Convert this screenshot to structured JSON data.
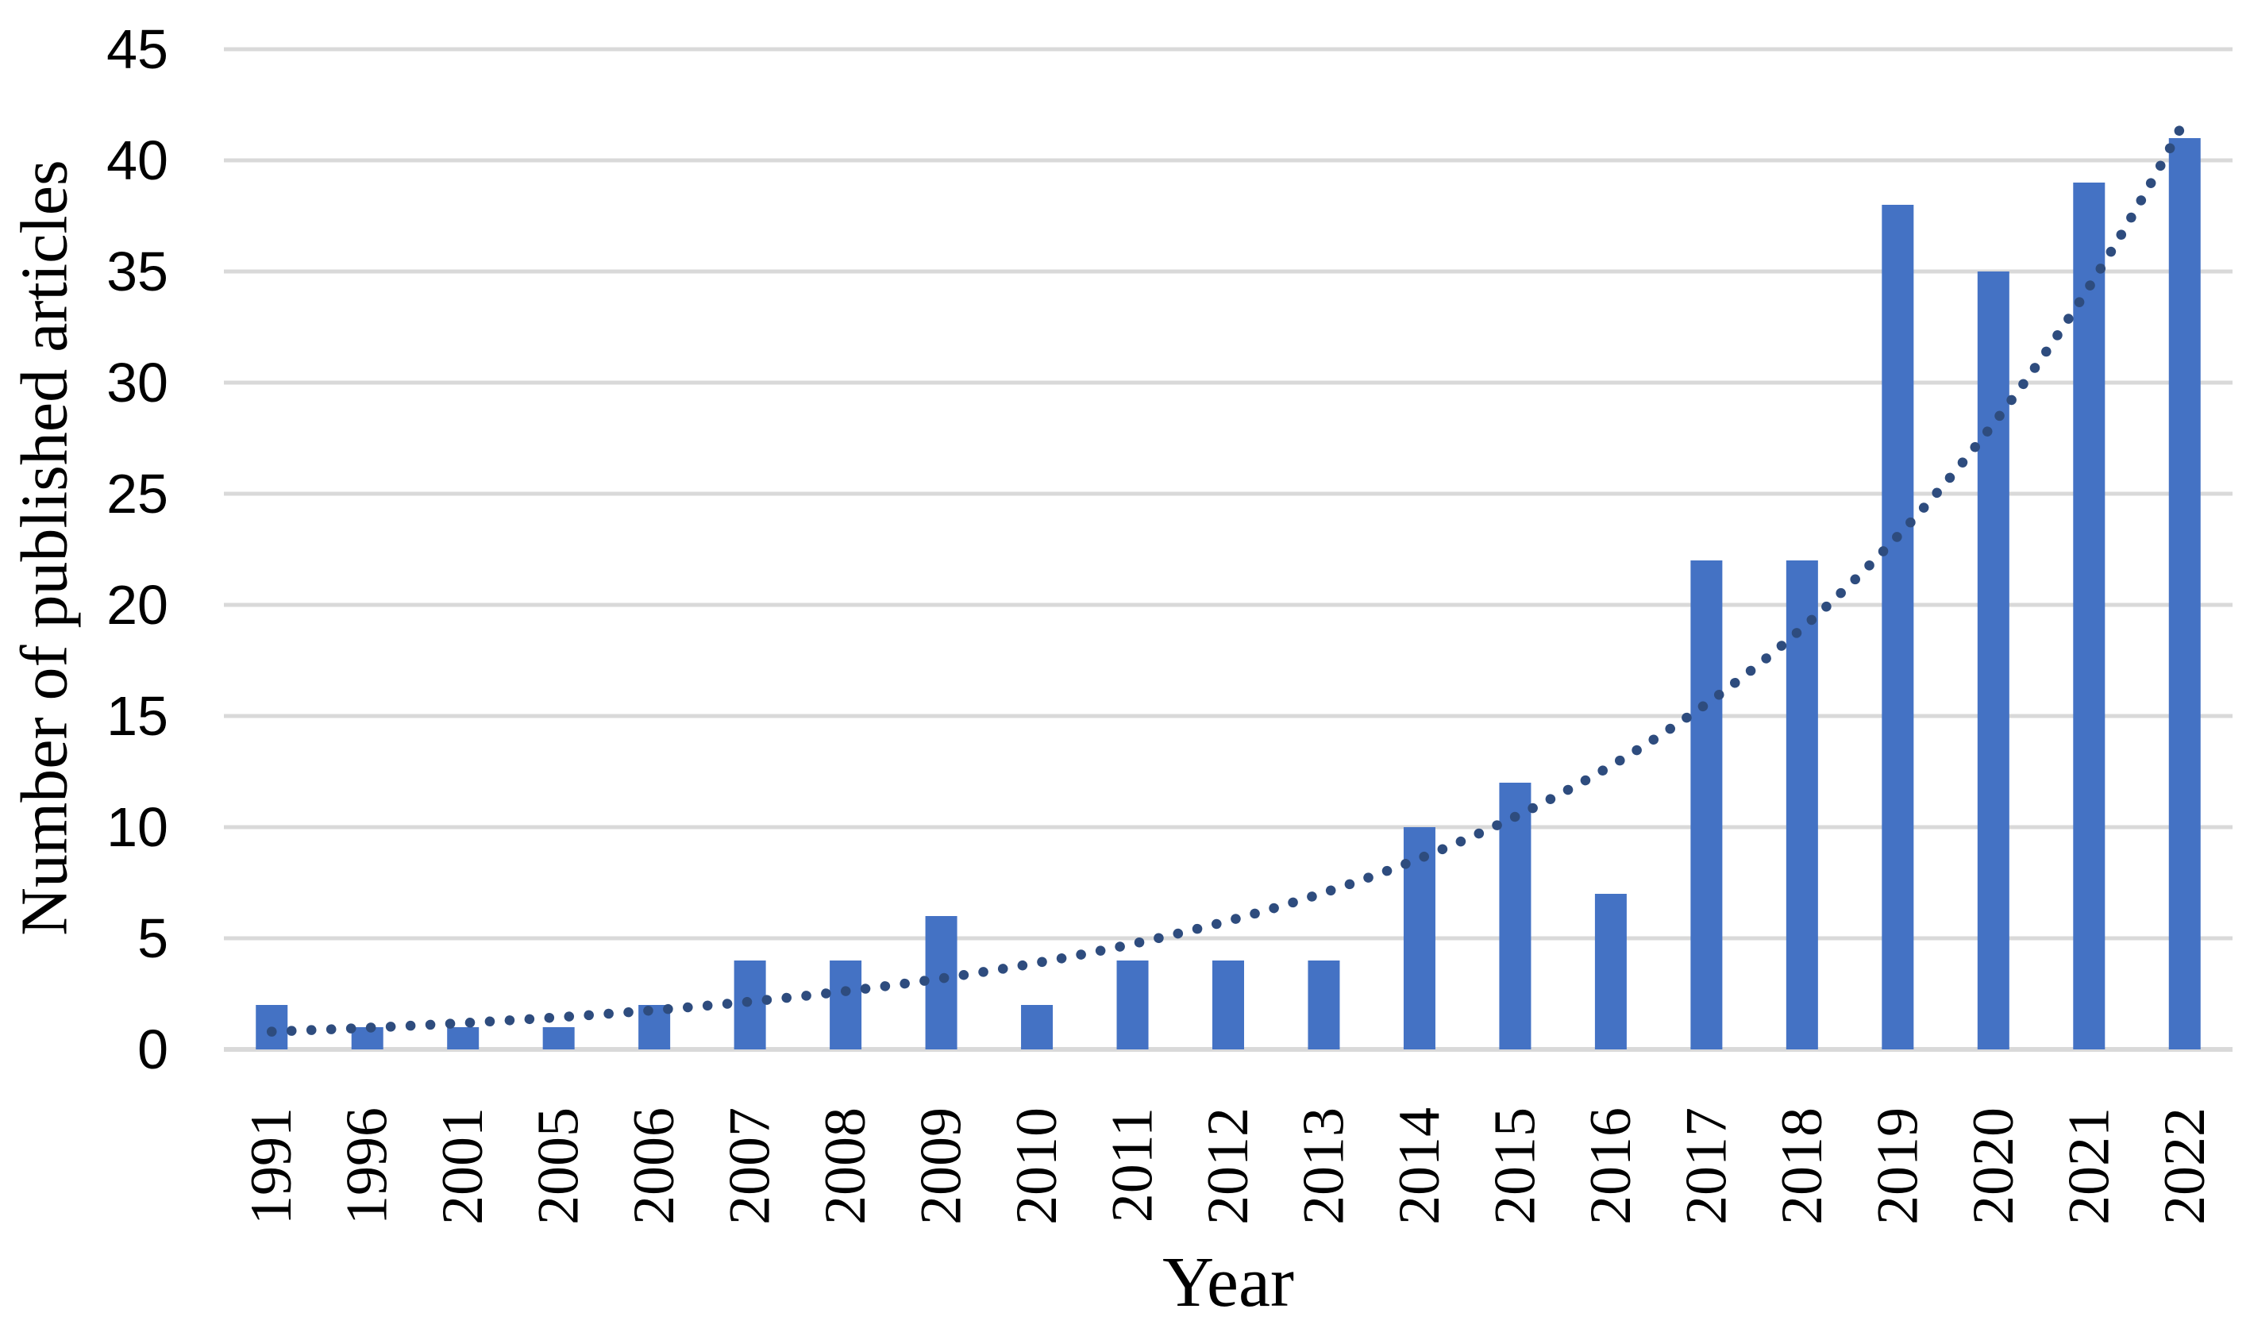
{
  "chart_data": {
    "type": "bar",
    "title": "",
    "xlabel": "Year",
    "ylabel": "Number of published articles",
    "categories": [
      "1991",
      "1996",
      "2001",
      "2005",
      "2006",
      "2007",
      "2008",
      "2009",
      "2010",
      "2011",
      "2012",
      "2013",
      "2014",
      "2015",
      "2016",
      "2017",
      "2018",
      "2019",
      "2020",
      "2021",
      "2022"
    ],
    "series": [
      {
        "name": "Number of published articles",
        "type": "bar",
        "color": "#4472C4",
        "values": [
          2,
          1,
          1,
          1,
          2,
          4,
          4,
          6,
          2,
          4,
          4,
          4,
          10,
          12,
          7,
          22,
          22,
          38,
          35,
          39,
          41
        ]
      },
      {
        "name": "Exponential trendline",
        "type": "dotted-line",
        "color": "#2E4C7E",
        "start_value": 0.8,
        "end_value": 41.8
      }
    ],
    "ylim": [
      0,
      45
    ],
    "yticks": [
      0,
      5,
      10,
      15,
      20,
      25,
      30,
      35,
      40,
      45
    ],
    "grid": "horizontal",
    "gridline_color": "#D9D9D9",
    "legend": "none",
    "background": "#FFFFFF",
    "text_color": "#000000"
  }
}
